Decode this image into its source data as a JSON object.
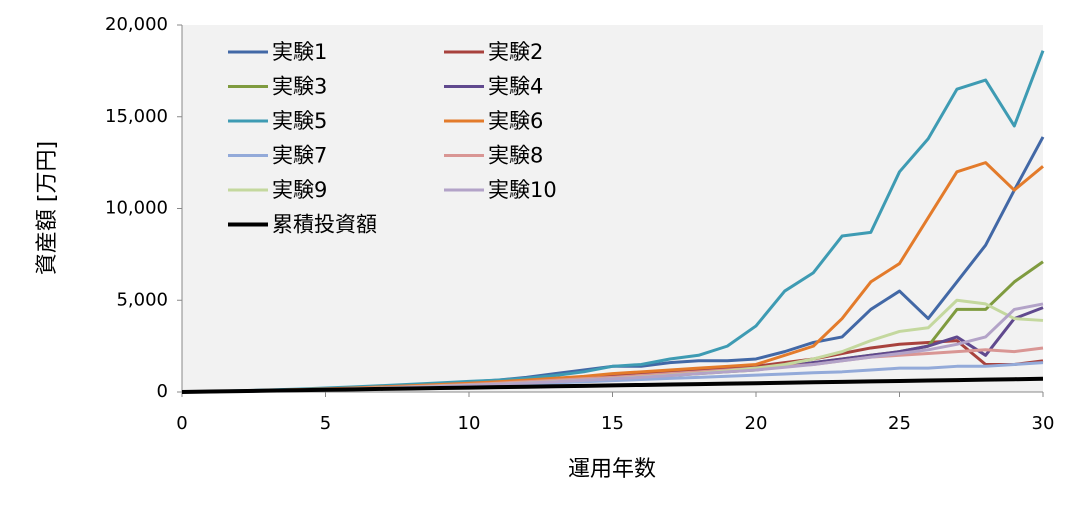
{
  "chart_data": {
    "type": "line",
    "x_label": "運用年数",
    "y_label": "資産額 [万円]",
    "x": [
      0,
      1,
      2,
      3,
      4,
      5,
      6,
      7,
      8,
      9,
      10,
      11,
      12,
      13,
      14,
      15,
      16,
      17,
      18,
      19,
      20,
      21,
      22,
      23,
      24,
      25,
      26,
      27,
      28,
      29,
      30
    ],
    "xlim": [
      0,
      30
    ],
    "xticks": [
      0,
      5,
      10,
      15,
      20,
      25,
      30
    ],
    "ylim": [
      0,
      20000
    ],
    "yticks": [
      {
        "value": 0,
        "label": "0"
      },
      {
        "value": 5000,
        "label": "5,000"
      },
      {
        "value": 10000,
        "label": "10,000"
      },
      {
        "value": 15000,
        "label": "15,000"
      },
      {
        "value": 20000,
        "label": "20,000"
      }
    ],
    "plot_background": "#f2f2f2",
    "series": [
      {
        "name": "実験1",
        "color": "#4268a6",
        "values": [
          0,
          25,
          50,
          90,
          130,
          170,
          230,
          300,
          380,
          450,
          550,
          650,
          800,
          1000,
          1200,
          1400,
          1400,
          1600,
          1700,
          1700,
          1800,
          2200,
          2700,
          3000,
          4500,
          5500,
          4000,
          6000,
          8000,
          11000,
          13900
        ]
      },
      {
        "name": "実験2",
        "color": "#a8423d",
        "values": [
          0,
          20,
          45,
          70,
          100,
          140,
          180,
          230,
          290,
          350,
          420,
          500,
          600,
          700,
          800,
          900,
          1000,
          1100,
          1200,
          1300,
          1400,
          1600,
          1800,
          2100,
          2400,
          2600,
          2700,
          2800,
          1500,
          1500,
          1700
        ]
      },
      {
        "name": "実験3",
        "color": "#7f9b3f",
        "values": [
          0,
          20,
          40,
          60,
          90,
          120,
          160,
          200,
          250,
          300,
          350,
          400,
          450,
          520,
          600,
          700,
          800,
          900,
          1000,
          1100,
          1200,
          1400,
          1600,
          1800,
          2000,
          2200,
          2500,
          4500,
          4500,
          6000,
          7100
        ]
      },
      {
        "name": "実験4",
        "color": "#60498e",
        "values": [
          0,
          20,
          40,
          65,
          95,
          130,
          170,
          220,
          270,
          330,
          400,
          470,
          550,
          630,
          720,
          800,
          900,
          1000,
          1100,
          1200,
          1300,
          1400,
          1600,
          1800,
          2000,
          2200,
          2500,
          3000,
          2000,
          4000,
          4600
        ]
      },
      {
        "name": "実験5",
        "color": "#3e9bb3",
        "values": [
          0,
          30,
          70,
          110,
          160,
          220,
          280,
          350,
          420,
          500,
          580,
          650,
          750,
          900,
          1100,
          1400,
          1500,
          1800,
          2000,
          2500,
          3600,
          5500,
          6500,
          8500,
          8700,
          12000,
          13800,
          16500,
          17000,
          14500,
          18600
        ]
      },
      {
        "name": "実験6",
        "color": "#e37b2b",
        "values": [
          0,
          25,
          55,
          90,
          130,
          170,
          220,
          280,
          340,
          410,
          480,
          560,
          650,
          750,
          850,
          1000,
          1100,
          1200,
          1300,
          1400,
          1500,
          2000,
          2500,
          4000,
          6000,
          7000,
          9500,
          12000,
          12500,
          11000,
          12300
        ]
      },
      {
        "name": "実験7",
        "color": "#93aad9",
        "values": [
          0,
          20,
          40,
          60,
          80,
          110,
          140,
          180,
          220,
          270,
          320,
          380,
          440,
          500,
          560,
          620,
          680,
          740,
          800,
          860,
          920,
          980,
          1050,
          1100,
          1200,
          1300,
          1300,
          1400,
          1400,
          1500,
          1600
        ]
      },
      {
        "name": "実験8",
        "color": "#d99694",
        "values": [
          0,
          20,
          45,
          75,
          110,
          150,
          190,
          240,
          290,
          350,
          410,
          480,
          560,
          640,
          720,
          800,
          900,
          1000,
          1100,
          1200,
          1300,
          1400,
          1500,
          1700,
          1900,
          2000,
          2100,
          2200,
          2300,
          2200,
          2400
        ]
      },
      {
        "name": "実験9",
        "color": "#c4d89e",
        "values": [
          0,
          20,
          40,
          65,
          95,
          130,
          170,
          210,
          260,
          310,
          370,
          430,
          500,
          570,
          650,
          730,
          820,
          920,
          1020,
          1150,
          1300,
          1500,
          1800,
          2200,
          2800,
          3300,
          3500,
          5000,
          4800,
          4000,
          3900
        ]
      },
      {
        "name": "実験10",
        "color": "#b3a3c8",
        "values": [
          0,
          20,
          40,
          60,
          90,
          120,
          160,
          200,
          250,
          300,
          360,
          420,
          490,
          560,
          640,
          720,
          800,
          900,
          1000,
          1100,
          1200,
          1350,
          1500,
          1700,
          1900,
          2100,
          2300,
          2600,
          3000,
          4500,
          4800
        ]
      },
      {
        "name": "累積投資額",
        "color": "#000000",
        "width": 4,
        "values": [
          0,
          24,
          48,
          72,
          96,
          120,
          144,
          168,
          192,
          216,
          240,
          264,
          288,
          312,
          336,
          360,
          384,
          408,
          432,
          456,
          480,
          504,
          528,
          552,
          576,
          600,
          624,
          648,
          672,
          696,
          720
        ]
      }
    ]
  }
}
